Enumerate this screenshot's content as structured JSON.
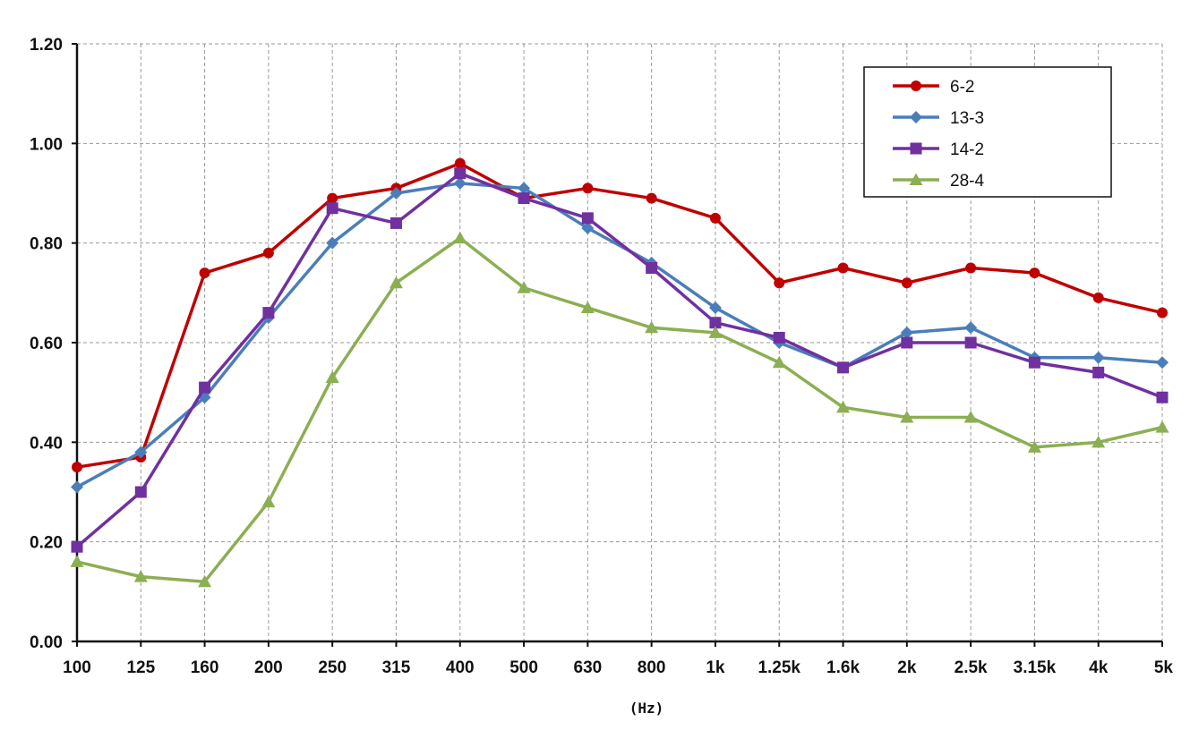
{
  "chart_data": {
    "type": "line",
    "categories": [
      "100",
      "125",
      "160",
      "200",
      "250",
      "315",
      "400",
      "500",
      "630",
      "800",
      "1k",
      "1.25k",
      "1.6k",
      "2k",
      "2.5k",
      "3.15k",
      "4k",
      "5k"
    ],
    "xlabel": "(Hz)",
    "ylabel": "",
    "ylim": [
      0,
      1.2
    ],
    "y_ticks": [
      "0.00",
      "0.20",
      "0.40",
      "0.60",
      "0.80",
      "1.00",
      "1.20"
    ],
    "grid": true,
    "legend_position": "top-right",
    "series": [
      {
        "name": "6-2",
        "color": "#C00000",
        "marker": "circle",
        "values": [
          0.35,
          0.37,
          0.74,
          0.78,
          0.89,
          0.91,
          0.96,
          0.89,
          0.91,
          0.89,
          0.85,
          0.72,
          0.75,
          0.72,
          0.75,
          0.74,
          0.69,
          0.66
        ]
      },
      {
        "name": "13-3",
        "color": "#4A7EBB",
        "marker": "diamond",
        "values": [
          0.31,
          0.38,
          0.49,
          0.65,
          0.8,
          0.9,
          0.92,
          0.91,
          0.83,
          0.76,
          0.67,
          0.6,
          0.55,
          0.62,
          0.63,
          0.57,
          0.57,
          0.56
        ]
      },
      {
        "name": "14-2",
        "color": "#7030A0",
        "marker": "square",
        "values": [
          0.19,
          0.3,
          0.51,
          0.66,
          0.87,
          0.84,
          0.94,
          0.89,
          0.85,
          0.75,
          0.64,
          0.61,
          0.55,
          0.6,
          0.6,
          0.56,
          0.54,
          0.49
        ]
      },
      {
        "name": "28-4",
        "color": "#8BAF52",
        "marker": "triangle",
        "values": [
          0.16,
          0.13,
          0.12,
          0.28,
          0.53,
          0.72,
          0.81,
          0.71,
          0.67,
          0.63,
          0.62,
          0.56,
          0.47,
          0.45,
          0.45,
          0.39,
          0.4,
          0.43
        ]
      }
    ]
  }
}
